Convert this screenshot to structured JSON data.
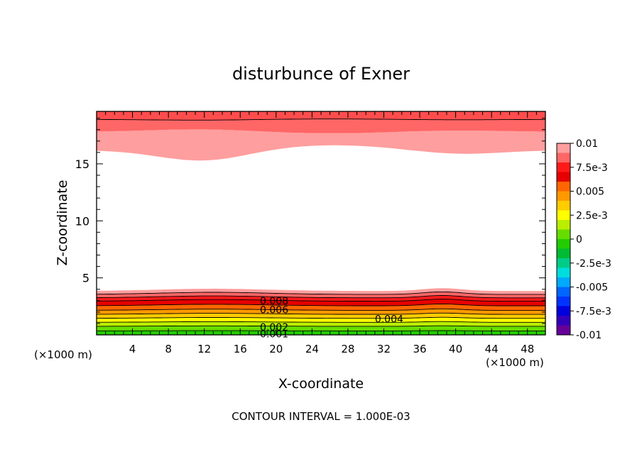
{
  "chart_data": {
    "type": "contour",
    "title": "disturbunce of Exner",
    "xlabel": "X-coordinate",
    "ylabel": "Z-coordinate",
    "x_unit_left": "(×1000 m)",
    "x_unit_right": "(×1000 m)",
    "footer": "CONTOUR INTERVAL = 1.000E-03",
    "xlim": [
      0,
      50
    ],
    "ylim": [
      0,
      19.6
    ],
    "x_ticks": [
      "4",
      "8",
      "12",
      "16",
      "20",
      "24",
      "28",
      "32",
      "36",
      "40",
      "44",
      "48"
    ],
    "y_ticks": [
      "5",
      "10",
      "15"
    ],
    "colorbar": {
      "range": [
        -0.01,
        0.01
      ],
      "labels": [
        "0.01",
        "7.5e-3",
        "0.005",
        "2.5e-3",
        "0",
        "-2.5e-3",
        "-0.005",
        "-7.5e-3",
        "-0.01"
      ],
      "colors": [
        "#ff9e9e",
        "#ff6666",
        "#ff1a1a",
        "#e60000",
        "#ff6600",
        "#ff9900",
        "#ffcc00",
        "#ffff00",
        "#bbee00",
        "#66dd00",
        "#22cc00",
        "#00bb33",
        "#00cc88",
        "#00dddd",
        "#00aaff",
        "#0066ff",
        "#0033ff",
        "#0000dd",
        "#3300bb",
        "#660099"
      ]
    },
    "contour_labels": [
      {
        "text": "0.008",
        "x": 18.2,
        "z": 3.0
      },
      {
        "text": "0.006",
        "x": 18.2,
        "z": 2.2
      },
      {
        "text": "0.004",
        "x": 31.0,
        "z": 1.4
      },
      {
        "text": "0.002",
        "x": 18.2,
        "z": 0.7
      },
      {
        "text": "0.001",
        "x": 18.2,
        "z": 0.1
      }
    ]
  }
}
